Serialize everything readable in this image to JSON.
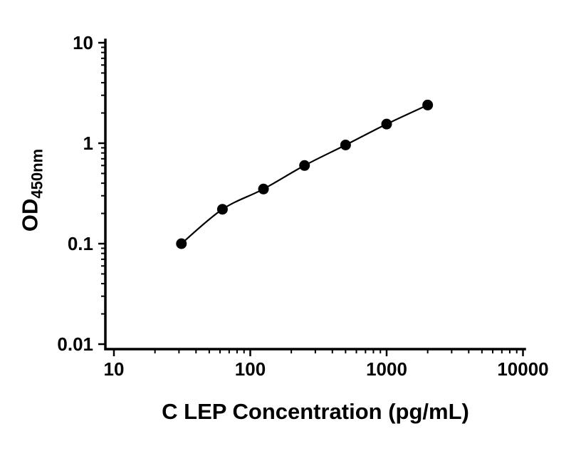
{
  "chart_data": {
    "type": "scatter",
    "xlabel": "C LEP Concentration (pg/mL)",
    "ylabel": "OD",
    "ylabel_subscript": "450nm",
    "x_scale": "log10",
    "y_scale": "log10",
    "xlim": [
      10,
      10000
    ],
    "ylim": [
      0.01,
      10
    ],
    "x_ticks": [
      10,
      100,
      1000,
      10000
    ],
    "y_ticks": [
      0.01,
      0.1,
      1,
      10
    ],
    "minor_log_ticks": true,
    "grid": false,
    "legend": false,
    "series": [
      {
        "x": [
          31.25,
          62.5,
          125,
          250,
          500,
          1000,
          2000
        ],
        "y": [
          0.1,
          0.22,
          0.35,
          0.6,
          0.96,
          1.55,
          2.4
        ],
        "marker": "filled-circle",
        "marker_color": "#000000",
        "line": "smooth",
        "line_color": "#000000"
      }
    ]
  },
  "colors": {
    "background": "#ffffff",
    "axis": "#000000",
    "text": "#000000"
  }
}
